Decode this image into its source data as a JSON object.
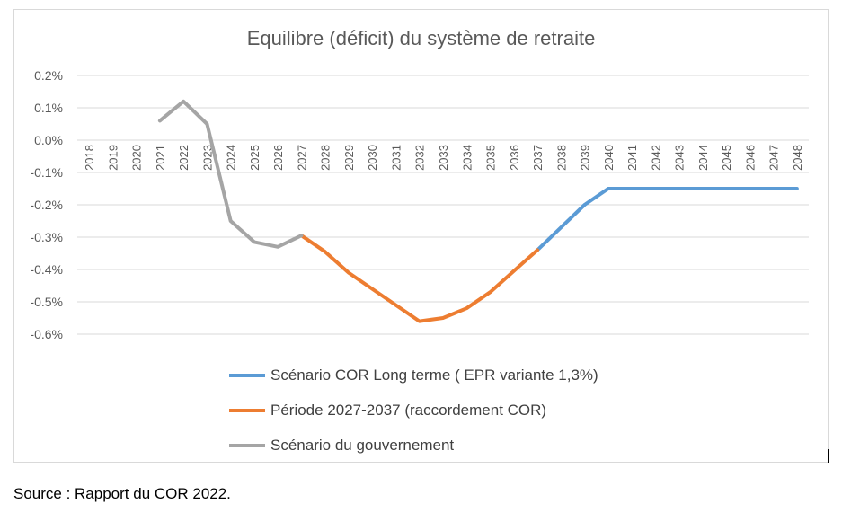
{
  "chart_data": {
    "type": "line",
    "title": "Equilibre (déficit) du système de retraite",
    "y_ticks": [
      "0.2%",
      "0.1%",
      "0.0%",
      "-0.1%",
      "-0.2%",
      "-0.3%",
      "-0.4%",
      "-0.5%",
      "-0.6%"
    ],
    "ylim": [
      -0.6,
      0.2
    ],
    "x": [
      "2018",
      "2019",
      "2020",
      "2021",
      "2022",
      "2023",
      "2024",
      "2025",
      "2026",
      "2027",
      "2028",
      "2029",
      "2030",
      "2031",
      "2032",
      "2033",
      "2034",
      "2035",
      "2036",
      "2037",
      "2038",
      "2039",
      "2040",
      "2041",
      "2042",
      "2043",
      "2044",
      "2045",
      "2046",
      "2047",
      "2048"
    ],
    "grid": true,
    "legend_position": "bottom",
    "series": [
      {
        "name": "Scénario COR Long terme ( EPR variante 1,3%)",
        "color": "#5b9bd5",
        "values": [
          null,
          null,
          null,
          null,
          null,
          null,
          null,
          null,
          null,
          null,
          null,
          null,
          null,
          null,
          null,
          null,
          null,
          null,
          null,
          -0.34,
          -0.27,
          -0.2,
          -0.15,
          -0.15,
          -0.15,
          -0.15,
          -0.15,
          -0.15,
          -0.15,
          -0.15,
          -0.15
        ]
      },
      {
        "name": "Période 2027-2037 (raccordement COR)",
        "color": "#ed7d31",
        "values": [
          null,
          null,
          null,
          null,
          null,
          null,
          null,
          null,
          null,
          -0.295,
          -0.345,
          -0.41,
          -0.46,
          -0.51,
          -0.56,
          -0.55,
          -0.52,
          -0.47,
          -0.405,
          -0.34,
          null,
          null,
          null,
          null,
          null,
          null,
          null,
          null,
          null,
          null,
          null
        ]
      },
      {
        "name": "Scénario du gouvernement",
        "color": "#a5a5a5",
        "values": [
          null,
          null,
          null,
          0.06,
          0.12,
          0.05,
          -0.25,
          -0.315,
          -0.33,
          -0.295,
          null,
          null,
          null,
          null,
          null,
          null,
          null,
          null,
          null,
          null,
          null,
          null,
          null,
          null,
          null,
          null,
          null,
          null,
          null,
          null,
          null
        ]
      }
    ]
  },
  "source_note": "Source : Rapport du COR 2022."
}
